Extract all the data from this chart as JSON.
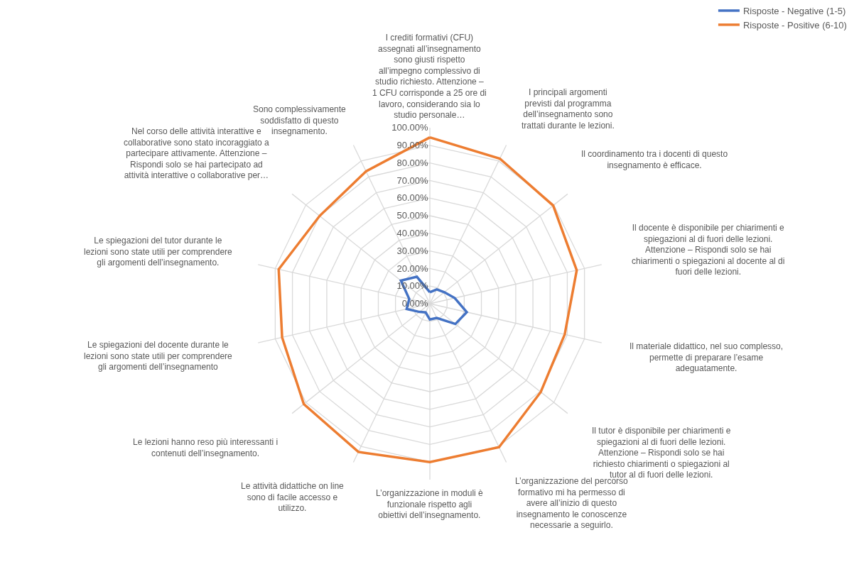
{
  "chart_data": {
    "type": "radar",
    "categories": [
      "I crediti formativi (CFU) assegnati all’insegnamento sono giusti rispetto all’impegno complessivo di studio richiesto. Attenzione – 1 CFU corrisponde a 25 ore di lavoro, considerando sia lo studio personale…",
      "I principali argomenti previsti dal programma dell’insegnamento sono trattati durante le lezioni.",
      "Il coordinamento tra i docenti di questo insegnamento è efficace.",
      "Il docente è disponibile per chiarimenti e spiegazioni al di fuori delle lezioni. Attenzione – Rispondi solo se hai chiarimenti o spiegazioni al docente al di fuori delle lezioni.",
      "Il materiale didattico, nel suo complesso, permette di preparare l’esame adeguatamente.",
      "Il tutor è disponibile per chiarimenti e spiegazioni al di fuori delle lezioni. Attenzione – Rispondi solo se hai richiesto chiarimenti o spiegazioni al tutor al di fuori delle lezioni.",
      "L’organizzazione del percorso formativo mi ha permesso di avere all’inizio di questo insegnamento le conoscenze necessarie a seguirlo.",
      "L’organizzazione in moduli è funzionale rispetto agli obiettivi dell’insegnamento.",
      "Le attività didattiche on line sono di facile accesso e utilizzo.",
      "Le lezioni hanno reso più interessanti i contenuti dell’insegnamento.",
      "Le spiegazioni del docente durante le lezioni sono state utili per comprendere gli argomenti dell’insegnamento",
      "Le spiegazioni del tutor durante le lezioni sono state utili per comprendere gli argomenti dell’insegnamento.",
      "Nel corso delle attività interattive e collaborative sono stato incoraggiato a partecipare attivamente. Attenzione – Rispondi solo se hai partecipato ad attività interattive o collaborative per…",
      "Sono complessivamente soddisfatto di questo insegnamento."
    ],
    "series": [
      {
        "name": "Risposte - Negative (1-5)",
        "color": "#4472c4",
        "values": [
          6.5,
          9,
          10.5,
          14.5,
          21.5,
          18.5,
          9,
          9,
          5.5,
          7.5,
          13.5,
          12,
          21,
          17
        ]
      },
      {
        "name": "Risposte - Positive (6-10)",
        "color": "#ed7d31",
        "values": [
          94.5,
          91.5,
          89.5,
          85.5,
          78.5,
          80.5,
          90.5,
          90,
          93.5,
          91.5,
          86,
          88,
          80,
          83.5
        ]
      }
    ],
    "ylim": [
      0,
      100
    ],
    "yticks": [
      {
        "value": 0,
        "label": "0.00%"
      },
      {
        "value": 10,
        "label": "10.00%"
      },
      {
        "value": 20,
        "label": "20.00%"
      },
      {
        "value": 30,
        "label": "30.00%"
      },
      {
        "value": 40,
        "label": "40.00%"
      },
      {
        "value": 50,
        "label": "50.00%"
      },
      {
        "value": 60,
        "label": "60.00%"
      },
      {
        "value": 70,
        "label": "70.00%"
      },
      {
        "value": 80,
        "label": "80.00%"
      },
      {
        "value": 90,
        "label": "90.00%"
      },
      {
        "value": 100,
        "label": "100.00%"
      }
    ],
    "grid": true,
    "legend": "top right",
    "line_style": "solid"
  }
}
